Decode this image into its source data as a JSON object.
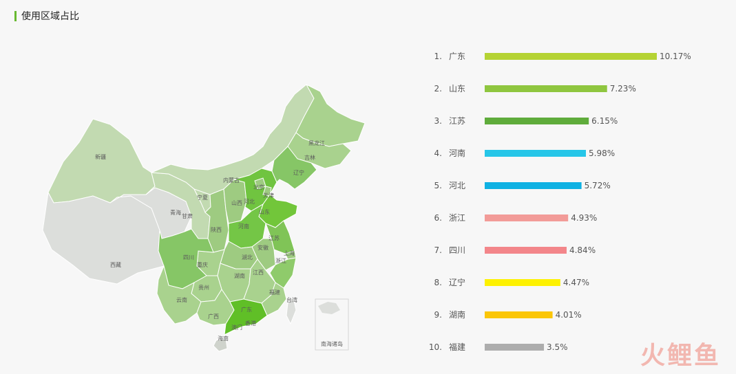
{
  "header": {
    "title": "使用区域占比",
    "accent_color": "#67b930"
  },
  "chart_data": {
    "type": "bar",
    "orientation": "horizontal",
    "categories": [
      "广东",
      "山东",
      "江苏",
      "河南",
      "河北",
      "浙江",
      "四川",
      "辽宁",
      "湖南",
      "福建"
    ],
    "ranks": [
      "1.",
      "2.",
      "3.",
      "4.",
      "5.",
      "6.",
      "7.",
      "8.",
      "9.",
      "10."
    ],
    "values": [
      10.17,
      7.23,
      6.15,
      5.98,
      5.72,
      4.93,
      4.84,
      4.47,
      4.01,
      3.5
    ],
    "value_labels": [
      "10.17%",
      "7.23%",
      "6.15%",
      "5.98%",
      "5.72%",
      "4.93%",
      "4.84%",
      "4.47%",
      "4.01%",
      "3.5%"
    ],
    "colors": [
      "#b5d334",
      "#8fc63f",
      "#5fac3b",
      "#26c6e8",
      "#0fb1e3",
      "#f29b98",
      "#f3868a",
      "#fdf101",
      "#fbc609",
      "#adadad"
    ],
    "xlim": [
      0,
      10.17
    ],
    "grid": false,
    "legend": false
  },
  "map": {
    "region_labels": {
      "xinjiang": "新疆",
      "xizang": "西藏",
      "qinghai": "青海",
      "gansu": "甘肃",
      "neimenggu": "内蒙古",
      "ningxia": "宁夏",
      "shaanxi": "陕西",
      "shanxi": "山西",
      "hebei": "河北",
      "beijing": "北京",
      "tianjin": "天津",
      "heilongjiang": "黑龙江",
      "jilin": "吉林",
      "liaoning": "辽宁",
      "shandong": "山东",
      "henan": "河南",
      "jiangsu": "江苏",
      "anhui": "安徽",
      "shanghai": "上海",
      "zhejiang": "浙江",
      "hubei": "湖北",
      "sichuan": "四川",
      "chongqing": "重庆",
      "hunan": "湖南",
      "jiangxi": "江西",
      "guizhou": "贵州",
      "yunnan": "云南",
      "guangxi": "广西",
      "guangdong": "广东",
      "fujian": "福建",
      "taiwan": "台湾",
      "hainan": "海南",
      "xianggang": "香港",
      "aomen": "澳门"
    },
    "inset_label": "南海诸岛"
  },
  "watermark": "火鲤鱼"
}
